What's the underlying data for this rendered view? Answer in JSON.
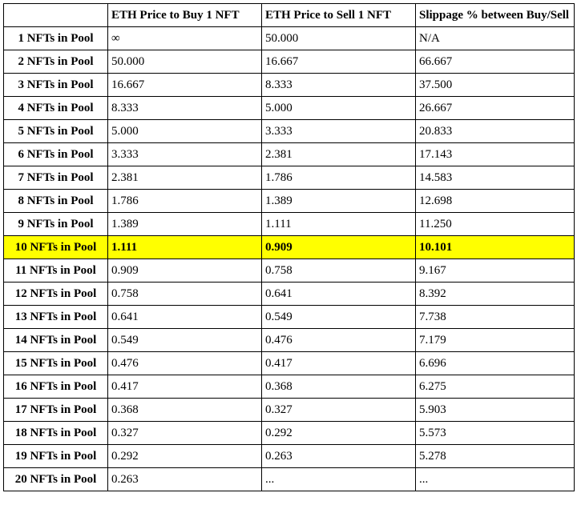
{
  "table": {
    "highlight_row_index": 9,
    "highlight_color": "#FFFF00",
    "columns": [
      "",
      "ETH Price to Buy 1 NFT",
      "ETH Price to Sell 1 NFT",
      "Slippage % between Buy/Sell"
    ],
    "rows": [
      {
        "label": "1 NFTs in Pool",
        "buy": "∞",
        "sell": "50.000",
        "slip": "N/A"
      },
      {
        "label": "2 NFTs in Pool",
        "buy": "50.000",
        "sell": "16.667",
        "slip": "66.667"
      },
      {
        "label": "3 NFTs in Pool",
        "buy": "16.667",
        "sell": "8.333",
        "slip": "37.500"
      },
      {
        "label": "4 NFTs in Pool",
        "buy": "8.333",
        "sell": "5.000",
        "slip": "26.667"
      },
      {
        "label": "5 NFTs in Pool",
        "buy": "5.000",
        "sell": "3.333",
        "slip": "20.833"
      },
      {
        "label": "6 NFTs in Pool",
        "buy": "3.333",
        "sell": "2.381",
        "slip": "17.143"
      },
      {
        "label": "7 NFTs in Pool",
        "buy": "2.381",
        "sell": "1.786",
        "slip": "14.583"
      },
      {
        "label": "8 NFTs in Pool",
        "buy": "1.786",
        "sell": "1.389",
        "slip": "12.698"
      },
      {
        "label": "9 NFTs in Pool",
        "buy": "1.389",
        "sell": "1.111",
        "slip": "11.250"
      },
      {
        "label": "10 NFTs in Pool",
        "buy": "1.111",
        "sell": "0.909",
        "slip": "10.101"
      },
      {
        "label": "11 NFTs in Pool",
        "buy": "0.909",
        "sell": "0.758",
        "slip": "9.167"
      },
      {
        "label": "12 NFTs in Pool",
        "buy": "0.758",
        "sell": "0.641",
        "slip": "8.392"
      },
      {
        "label": "13 NFTs in Pool",
        "buy": "0.641",
        "sell": "0.549",
        "slip": "7.738"
      },
      {
        "label": "14 NFTs in Pool",
        "buy": "0.549",
        "sell": "0.476",
        "slip": "7.179"
      },
      {
        "label": "15 NFTs in Pool",
        "buy": "0.476",
        "sell": "0.417",
        "slip": "6.696"
      },
      {
        "label": "16 NFTs in Pool",
        "buy": "0.417",
        "sell": "0.368",
        "slip": "6.275"
      },
      {
        "label": "17 NFTs in Pool",
        "buy": "0.368",
        "sell": "0.327",
        "slip": "5.903"
      },
      {
        "label": "18 NFTs in Pool",
        "buy": "0.327",
        "sell": "0.292",
        "slip": "5.573"
      },
      {
        "label": "19 NFTs in Pool",
        "buy": "0.292",
        "sell": "0.263",
        "slip": "5.278"
      },
      {
        "label": "20 NFTs in Pool",
        "buy": "0.263",
        "sell": "...",
        "slip": "..."
      }
    ]
  }
}
